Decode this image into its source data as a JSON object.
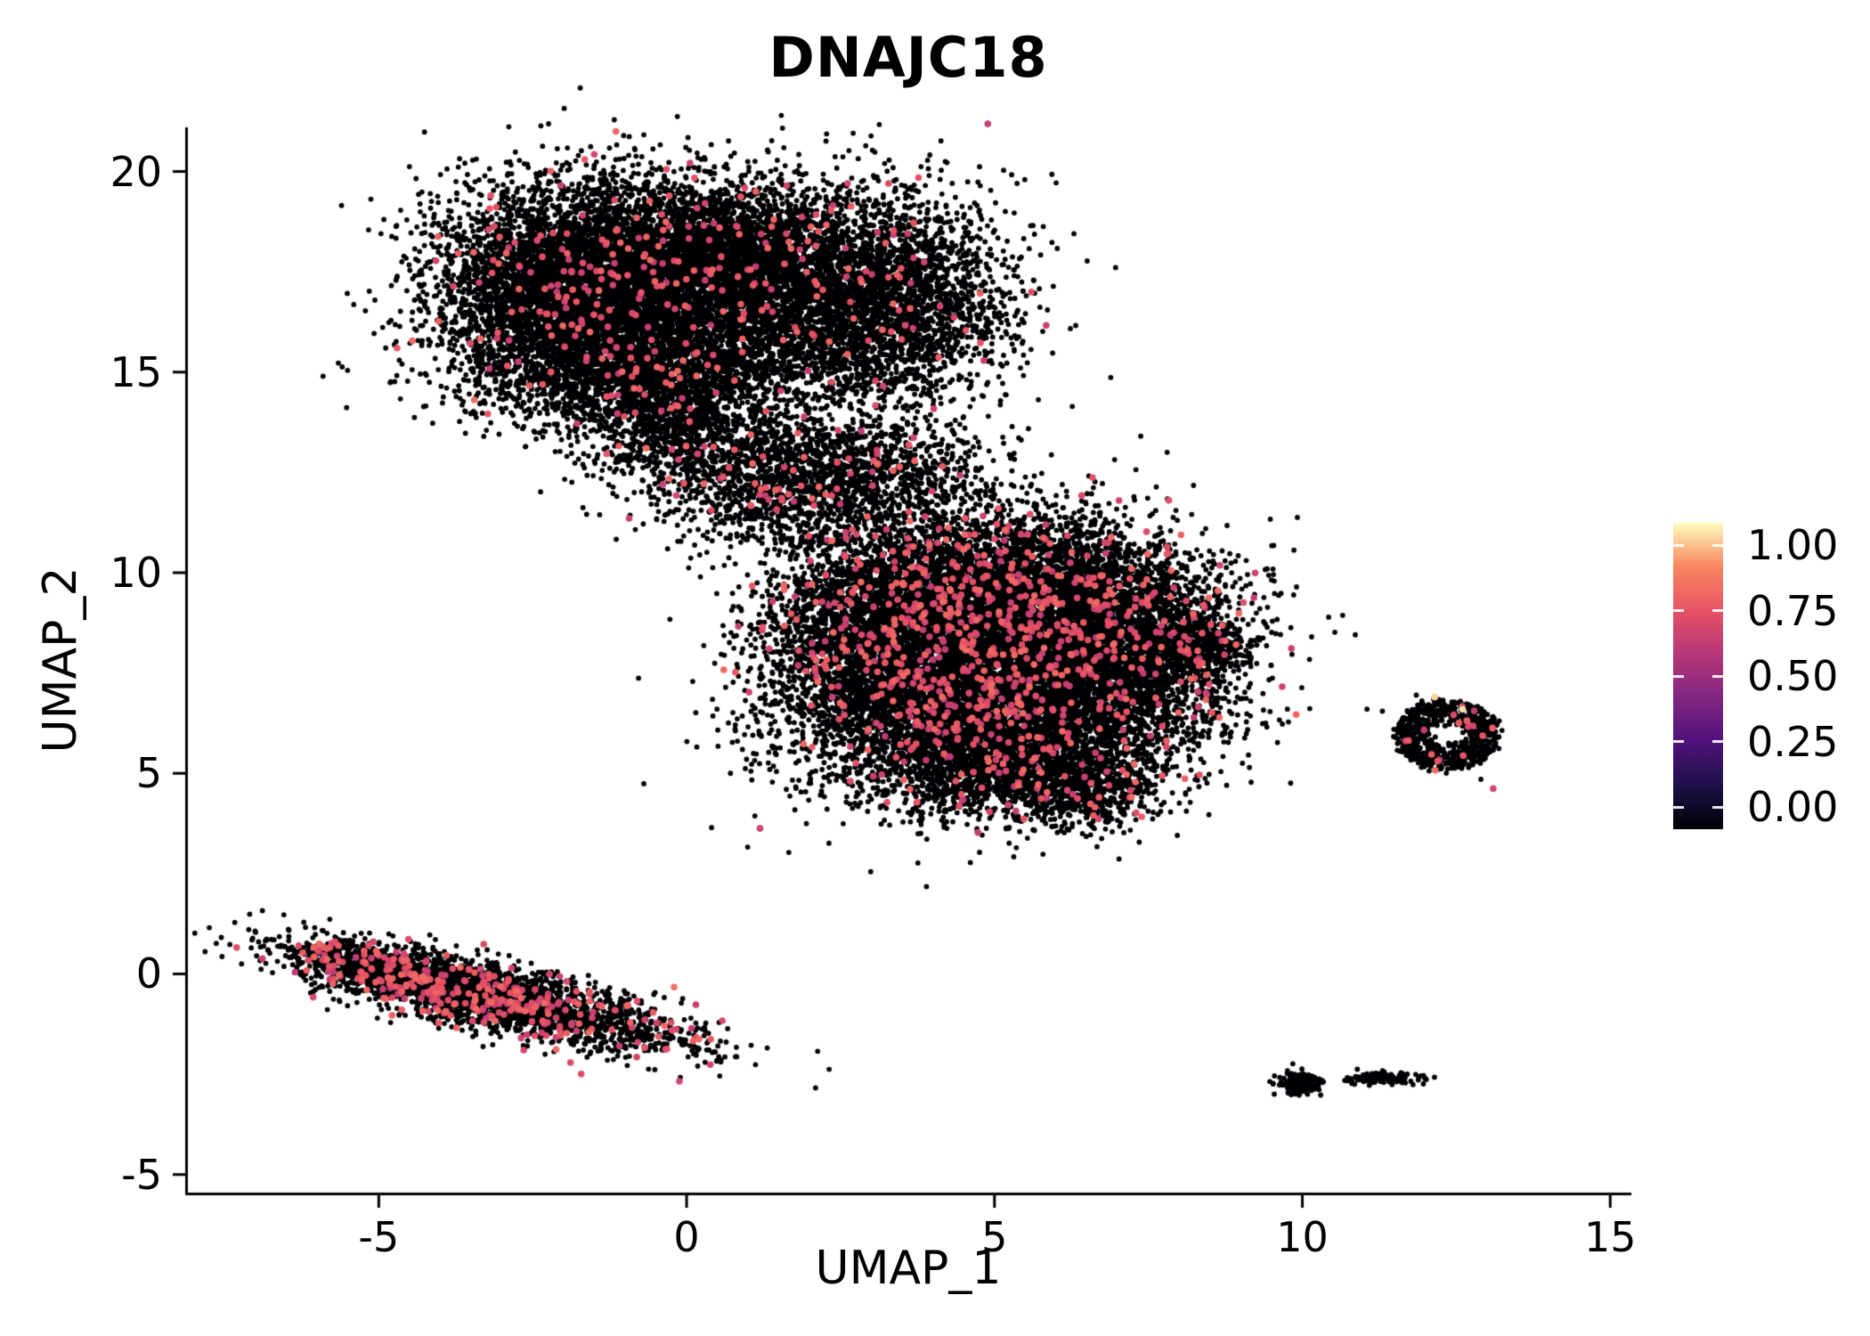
{
  "chart_data": {
    "type": "scatter",
    "title": "DNAJC18",
    "xlabel": "UMAP_1",
    "ylabel": "UMAP_2",
    "xlim": [
      -8.1,
      15.3
    ],
    "ylim": [
      -5.45,
      21.1
    ],
    "xticks": {
      "values": [
        -5,
        0,
        5,
        10,
        15
      ],
      "labels": [
        "-5",
        "0",
        "5",
        "10",
        "15"
      ]
    },
    "yticks": {
      "values": [
        -5,
        0,
        5,
        10,
        15,
        20
      ],
      "labels": [
        "-5",
        "0",
        "5",
        "10",
        "15",
        "20"
      ]
    },
    "grid": false,
    "legend": {
      "position": "right",
      "labels": [
        "1.00",
        "0.75",
        "0.50",
        "0.25",
        "0.00"
      ],
      "values": [
        1,
        0.75,
        0.5,
        0.25,
        0
      ]
    },
    "colormap_name": "magma",
    "colormap": [
      [
        0.0,
        "#000004"
      ],
      [
        0.14,
        "#1d1147"
      ],
      [
        0.29,
        "#51127c"
      ],
      [
        0.43,
        "#822681"
      ],
      [
        0.57,
        "#b63679"
      ],
      [
        0.71,
        "#e65164"
      ],
      [
        0.86,
        "#fb8861"
      ],
      [
        1.0,
        "#fcfdbf"
      ]
    ],
    "point": {
      "radius_black": 2.9,
      "radius_colored": 3.8
    },
    "seed": 42,
    "expressed_value_range": [
      0.6,
      0.78
    ],
    "clusters": [
      {
        "name": "upper-cluster-core-left",
        "cx": -1.8,
        "cy": 17.2,
        "sx": 1.15,
        "sy": 1.25,
        "rot": 0,
        "n": 5200,
        "frac": 0.022
      },
      {
        "name": "upper-cluster-core-mid",
        "cx": 0.6,
        "cy": 17.6,
        "sx": 1.2,
        "sy": 1.1,
        "rot": 0,
        "n": 4200,
        "frac": 0.025
      },
      {
        "name": "upper-cluster-right-lobe",
        "cx": 3.2,
        "cy": 16.8,
        "sx": 1.05,
        "sy": 1.35,
        "rot": 0,
        "n": 3000,
        "frac": 0.02
      },
      {
        "name": "upper-cluster-lower-band",
        "cx": -0.6,
        "cy": 15.0,
        "sx": 1.5,
        "sy": 0.75,
        "rot": 0,
        "n": 2200,
        "frac": 0.022
      },
      {
        "name": "upper-cluster-neck",
        "cx": -0.2,
        "cy": 13.6,
        "sx": 0.8,
        "sy": 0.7,
        "rot": 0,
        "n": 900,
        "frac": 0.03
      },
      {
        "name": "bridge-left",
        "cx": 1.6,
        "cy": 12.4,
        "sx": 1.0,
        "sy": 0.75,
        "rot": 0,
        "n": 1100,
        "frac": 0.03
      },
      {
        "name": "bridge-right",
        "cx": 3.4,
        "cy": 12.6,
        "sx": 0.9,
        "sy": 0.6,
        "rot": 0,
        "n": 520,
        "frac": 0.03
      },
      {
        "name": "bridge-sparse-trail",
        "cx": 2.4,
        "cy": 11.3,
        "sx": 1.3,
        "sy": 0.5,
        "rot": 0,
        "n": 360,
        "frac": 0.02
      },
      {
        "name": "central-cluster-top",
        "cx": 5.2,
        "cy": 9.2,
        "sx": 1.5,
        "sy": 1.15,
        "rot": 0,
        "n": 6000,
        "frac": 0.06
      },
      {
        "name": "central-cluster-bottom",
        "cx": 4.6,
        "cy": 6.6,
        "sx": 1.5,
        "sy": 1.1,
        "rot": 0,
        "n": 5000,
        "frac": 0.045
      },
      {
        "name": "central-cluster-right",
        "cx": 7.0,
        "cy": 7.8,
        "sx": 1.0,
        "sy": 1.2,
        "rot": 0,
        "n": 2600,
        "frac": 0.045
      },
      {
        "name": "central-cluster-left",
        "cx": 3.0,
        "cy": 8.6,
        "sx": 0.85,
        "sy": 1.1,
        "rot": 0,
        "n": 1800,
        "frac": 0.045
      },
      {
        "name": "central-cluster-lower-tail",
        "cx": 5.5,
        "cy": 5.0,
        "sx": 1.1,
        "sy": 0.6,
        "rot": 0,
        "n": 1200,
        "frac": 0.035
      },
      {
        "name": "central-cluster-right-tip",
        "cx": 8.5,
        "cy": 8.2,
        "sx": 0.35,
        "sy": 0.3,
        "rot": 0,
        "n": 300,
        "frac": 0.03
      },
      {
        "name": "central-cluster-bottom-tail",
        "cx": 6.6,
        "cy": 4.4,
        "sx": 0.5,
        "sy": 0.4,
        "rot": 0,
        "n": 260,
        "frac": 0.02
      },
      {
        "name": "lower-left-streak-main",
        "cx": -3.0,
        "cy": -0.65,
        "sx": 1.6,
        "sy": 0.38,
        "rot": -19,
        "n": 2400,
        "frac": 0.1
      },
      {
        "name": "lower-left-streak-head",
        "cx": -4.8,
        "cy": 0.05,
        "sx": 0.9,
        "sy": 0.3,
        "rot": -19,
        "n": 900,
        "frac": 0.1
      },
      {
        "name": "right-ring-cluster",
        "shape": "ring",
        "cx": 12.35,
        "cy": 5.95,
        "rInner": 0.25,
        "rOuter": 0.85,
        "n": 760,
        "frac": 0.015
      },
      {
        "name": "bottom-right-speck-left",
        "cx": 9.95,
        "cy": -2.72,
        "sx": 0.16,
        "sy": 0.13,
        "rot": 0,
        "n": 160,
        "frac": 0
      },
      {
        "name": "bottom-right-speck-right",
        "cx": 11.4,
        "cy": -2.6,
        "sx": 0.3,
        "sy": 0.07,
        "rot": 0,
        "n": 130,
        "frac": 0
      },
      {
        "name": "bottom-right-speck-mid",
        "cx": 10.75,
        "cy": -2.65,
        "sx": 0.05,
        "sy": 0.04,
        "rot": 0,
        "n": 12,
        "frac": 0
      }
    ],
    "outliers": [
      [
        6.6,
        3.8,
        0
      ],
      [
        11.05,
        6.6,
        0
      ],
      [
        11.3,
        6.55,
        0
      ],
      [
        13.1,
        4.62,
        0.66
      ],
      [
        12.9,
        4.85,
        0
      ],
      [
        11.85,
        6.95,
        0
      ],
      [
        12.6,
        6.6,
        0.97
      ],
      [
        12.15,
        6.9,
        0.95
      ],
      [
        4.9,
        13.9,
        0
      ],
      [
        5.1,
        15.2,
        0
      ]
    ]
  }
}
